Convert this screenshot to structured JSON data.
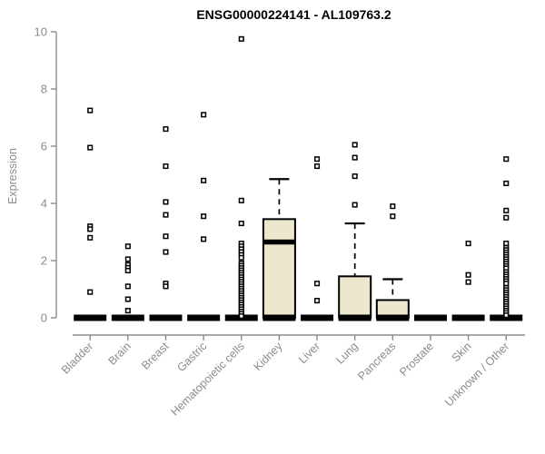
{
  "title": "ENSG00000224141 - AL109763.2",
  "chart_data": {
    "type": "boxplot",
    "title": "ENSG00000224141 - AL109763.2",
    "xlabel": "",
    "ylabel": "Expression",
    "ylim": [
      0,
      10
    ],
    "yticks": [
      0,
      2,
      4,
      6,
      8,
      10
    ],
    "grid": false,
    "legend": "none",
    "colors": {
      "box_fill": "#ede7cd",
      "box_stroke": "#000000",
      "axis": "#8c8c8c",
      "title": "#000000",
      "background": "#ffffff"
    },
    "categories": [
      "Bladder",
      "Brain",
      "Breast",
      "Gastric",
      "Hematopoietic cells",
      "Kidney",
      "Liver",
      "Lung",
      "Pancreas",
      "Prostate",
      "Skin",
      "Unknown / Other"
    ],
    "series": [
      {
        "category": "Bladder",
        "q1": 0,
        "median": 0,
        "q3": 0,
        "whisker_low": 0,
        "whisker_high": 0,
        "outliers": [
          7.25,
          5.95,
          3.2,
          3.1,
          2.8,
          0.9
        ]
      },
      {
        "category": "Brain",
        "q1": 0,
        "median": 0,
        "q3": 0,
        "whisker_low": 0,
        "whisker_high": 0,
        "outliers": [
          2.5,
          2.05,
          1.85,
          1.75,
          1.65,
          1.1,
          0.65,
          0.25
        ]
      },
      {
        "category": "Breast",
        "q1": 0,
        "median": 0,
        "q3": 0,
        "whisker_low": 0,
        "whisker_high": 0,
        "outliers": [
          6.6,
          5.3,
          4.05,
          3.6,
          2.85,
          2.3,
          1.2,
          1.1
        ]
      },
      {
        "category": "Gastric",
        "q1": 0,
        "median": 0,
        "q3": 0,
        "whisker_low": 0,
        "whisker_high": 0,
        "outliers": [
          7.1,
          4.8,
          3.55,
          2.75
        ]
      },
      {
        "category": "Hematopoietic cells",
        "q1": 0,
        "median": 0,
        "q3": 0,
        "whisker_low": 0,
        "whisker_high": 0,
        "outliers": [
          9.75,
          4.1,
          3.3,
          2.6,
          2.5,
          2.4,
          2.3,
          2.2,
          2.1,
          1.9,
          1.82,
          1.74,
          1.66,
          1.58,
          1.5,
          1.42,
          1.34,
          1.26,
          1.18,
          1.1,
          1.02,
          0.94,
          0.86,
          0.78,
          0.7,
          0.62,
          0.54,
          0.46,
          0.38,
          0.3,
          0.22,
          0.14,
          0.06
        ]
      },
      {
        "category": "Kidney",
        "q1": 0,
        "median": 2.65,
        "q3": 3.45,
        "whisker_low": 0,
        "whisker_high": 4.85,
        "outliers": []
      },
      {
        "category": "Liver",
        "q1": 0,
        "median": 0,
        "q3": 0,
        "whisker_low": 0,
        "whisker_high": 0,
        "outliers": [
          5.55,
          5.3,
          1.2,
          0.6
        ]
      },
      {
        "category": "Lung",
        "q1": 0,
        "median": 0,
        "q3": 1.45,
        "whisker_low": 0,
        "whisker_high": 3.3,
        "outliers": [
          6.05,
          5.6,
          4.95,
          3.95
        ]
      },
      {
        "category": "Pancreas",
        "q1": 0,
        "median": 0,
        "q3": 0.62,
        "whisker_low": 0,
        "whisker_high": 1.35,
        "outliers": [
          3.9,
          3.55
        ]
      },
      {
        "category": "Prostate",
        "q1": 0,
        "median": 0,
        "q3": 0,
        "whisker_low": 0,
        "whisker_high": 0,
        "outliers": []
      },
      {
        "category": "Skin",
        "q1": 0,
        "median": 0,
        "q3": 0,
        "whisker_low": 0,
        "whisker_high": 0,
        "outliers": [
          2.6,
          1.5,
          1.25
        ]
      },
      {
        "category": "Unknown / Other",
        "q1": 0,
        "median": 0,
        "q3": 0,
        "whisker_low": 0,
        "whisker_high": 0,
        "outliers": [
          5.55,
          4.7,
          3.75,
          3.5,
          2.6,
          2.45,
          2.37,
          2.29,
          2.21,
          2.13,
          2.05,
          1.97,
          1.89,
          1.81,
          1.73,
          1.6,
          1.52,
          1.44,
          1.36,
          1.28,
          1.2,
          1.05,
          0.97,
          0.89,
          0.81,
          0.73,
          0.65,
          0.57,
          0.49,
          0.41,
          0.33,
          0.25,
          0.17,
          0.09
        ]
      }
    ]
  }
}
